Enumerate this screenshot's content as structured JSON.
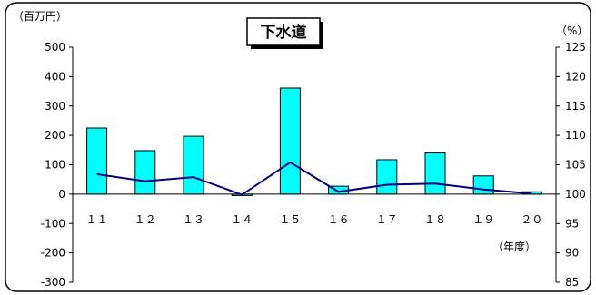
{
  "chart_data": {
    "type": "bar+line",
    "title": "下水道",
    "y_left_unit": "（百万円）",
    "y_right_unit": "（%）",
    "x_unit": "（年度）",
    "categories": [
      "１１",
      "１２",
      "１３",
      "１４",
      "１５",
      "１６",
      "１７",
      "１８",
      "１９",
      "２０"
    ],
    "y_left": {
      "range": [
        -300,
        500
      ],
      "ticks": [
        "500",
        "400",
        "300",
        "200",
        "100",
        "0",
        "-100",
        "-200",
        "-300"
      ],
      "tick_values": [
        500,
        400,
        300,
        200,
        100,
        0,
        -100,
        -200,
        -300
      ]
    },
    "y_right": {
      "range": [
        85,
        125
      ],
      "ticks": [
        "125",
        "120",
        "115",
        "110",
        "105",
        "100",
        "95",
        "90",
        "85"
      ],
      "tick_values": [
        125,
        120,
        115,
        110,
        105,
        100,
        95,
        90,
        85
      ]
    },
    "series": [
      {
        "type": "bar",
        "axis": "left",
        "color": "#00FFFF",
        "values": [
          225,
          148,
          197,
          -5,
          361,
          27,
          117,
          140,
          62,
          8
        ]
      },
      {
        "type": "line",
        "axis": "right",
        "color": "#000080",
        "values": [
          103.4,
          102.2,
          102.9,
          99.9,
          105.4,
          100.4,
          101.6,
          101.8,
          100.8,
          100.1
        ]
      }
    ],
    "grid": false,
    "legend": "none"
  }
}
